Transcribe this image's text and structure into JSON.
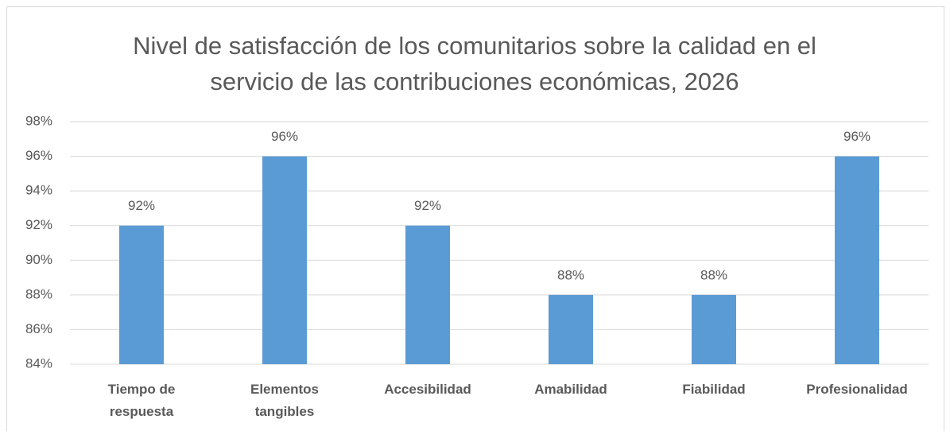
{
  "chart_data": {
    "type": "bar",
    "title": "Nivel de satisfacción de los comunitarios sobre la calidad en el servicio de las contribuciones económicas, 2026",
    "categories": [
      "Tiempo de respuesta",
      "Elementos tangibles",
      "Accesibilidad",
      "Amabilidad",
      "Fiabilidad",
      "Profesionalidad"
    ],
    "values": [
      92,
      96,
      92,
      88,
      88,
      96
    ],
    "value_labels": [
      "92%",
      "96%",
      "92%",
      "88%",
      "88%",
      "96%"
    ],
    "color": "#5b9bd5",
    "ylim": [
      84,
      98
    ],
    "yticks": [
      {
        "value": 84,
        "label": "84%"
      },
      {
        "value": 86,
        "label": "86%"
      },
      {
        "value": 88,
        "label": "88%"
      },
      {
        "value": 90,
        "label": "90%"
      },
      {
        "value": 92,
        "label": "92%"
      },
      {
        "value": 94,
        "label": "94%"
      },
      {
        "value": 96,
        "label": "96%"
      },
      {
        "value": 98,
        "label": "98%"
      }
    ],
    "grid": true
  }
}
